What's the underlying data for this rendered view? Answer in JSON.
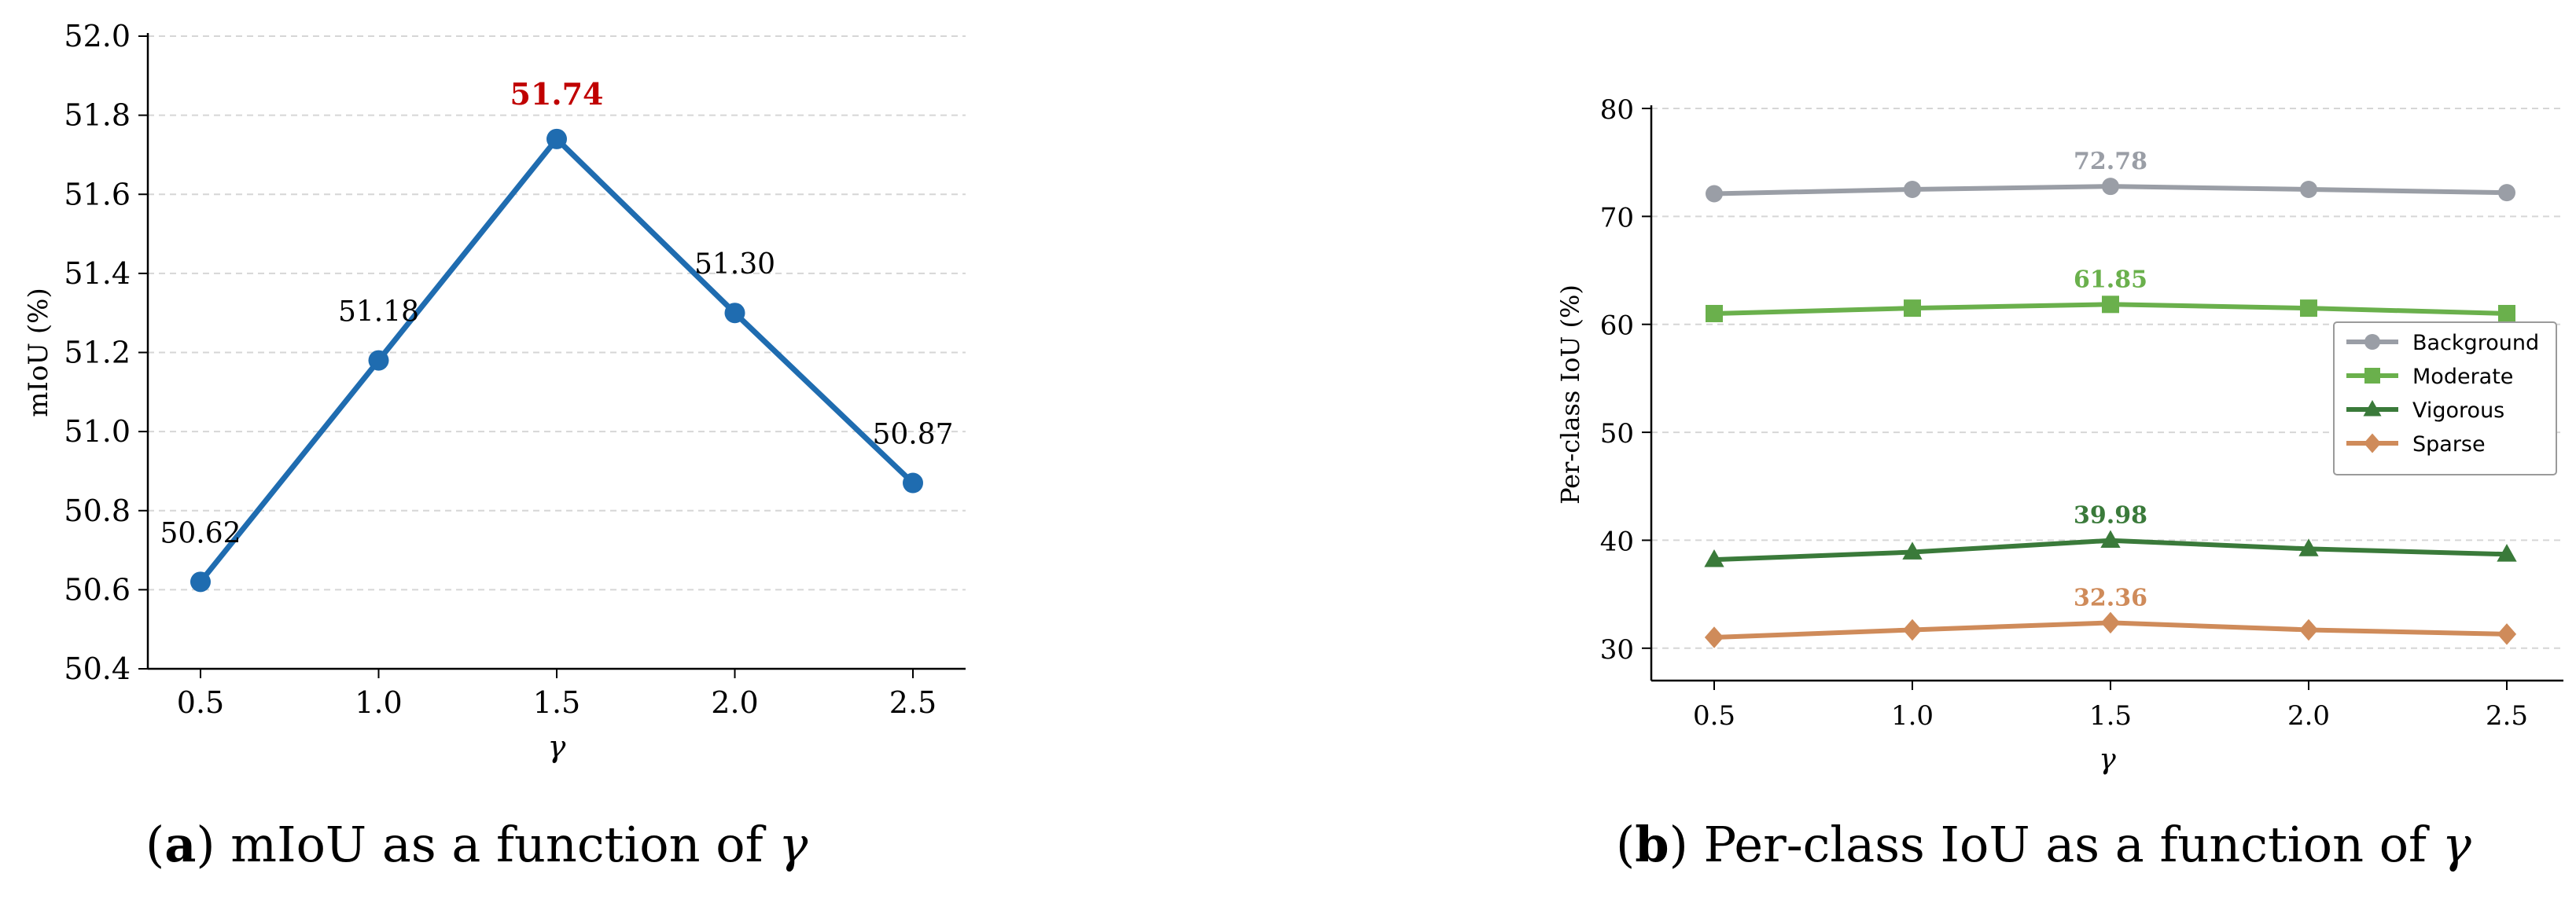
{
  "chart_data": [
    {
      "type": "line",
      "panel": "a",
      "x": [
        0.5,
        1.0,
        1.5,
        2.0,
        2.5
      ],
      "x_tick_labels": [
        "0.5",
        "1.0",
        "1.5",
        "2.0",
        "2.5"
      ],
      "xlabel": "γ",
      "ylabel": "mIoU (%)",
      "ylim": [
        50.4,
        52.0
      ],
      "y_ticks": [
        50.4,
        50.6,
        50.8,
        51.0,
        51.2,
        51.4,
        51.6,
        51.8,
        52.0
      ],
      "y_tick_labels": [
        "50.4",
        "50.6",
        "50.8",
        "51.0",
        "51.2",
        "51.4",
        "51.6",
        "51.8",
        "52.0"
      ],
      "grid": "horizontal-dashed",
      "series": [
        {
          "values": [
            50.62,
            51.18,
            51.74,
            51.3,
            50.87
          ],
          "labels": [
            "50.62",
            "51.18",
            "51.74",
            "51.30",
            "50.87"
          ],
          "highlight_index": 2,
          "color": "#1f6cb0",
          "highlight_color": "#c00000",
          "marker": "circle"
        }
      ],
      "caption": {
        "letter": "a",
        "text": "mIoU as a function of ",
        "symbol": "γ"
      }
    },
    {
      "type": "line",
      "panel": "b",
      "x": [
        0.5,
        1.0,
        1.5,
        2.0,
        2.5
      ],
      "x_tick_labels": [
        "0.5",
        "1.0",
        "1.5",
        "2.0",
        "2.5"
      ],
      "xlabel": "γ",
      "ylabel": "Per-class IoU (%)",
      "ylim": [
        27,
        80
      ],
      "y_ticks": [
        30,
        40,
        50,
        60,
        70,
        80
      ],
      "y_tick_labels": [
        "30",
        "40",
        "50",
        "60",
        "70",
        "80"
      ],
      "grid": "horizontal-dashed",
      "legend": "right",
      "series": [
        {
          "name": "Background",
          "values": [
            72.1,
            72.5,
            72.78,
            72.5,
            72.2
          ],
          "peak_label": "72.78",
          "color": "#9a9ea6",
          "marker": "circle"
        },
        {
          "name": "Moderate",
          "values": [
            61.0,
            61.5,
            61.85,
            61.5,
            61.0
          ],
          "peak_label": "61.85",
          "color": "#6ab04c",
          "marker": "square"
        },
        {
          "name": "Vigorous",
          "values": [
            38.2,
            38.9,
            39.98,
            39.2,
            38.7
          ],
          "peak_label": "39.98",
          "color": "#3a7a3a",
          "marker": "triangle"
        },
        {
          "name": "Sparse",
          "values": [
            31.0,
            31.7,
            32.36,
            31.7,
            31.3
          ],
          "peak_label": "32.36",
          "color": "#cf8b5a",
          "marker": "diamond"
        }
      ],
      "caption": {
        "letter": "b",
        "text": "Per-class IoU as a function of ",
        "symbol": "γ"
      }
    }
  ]
}
